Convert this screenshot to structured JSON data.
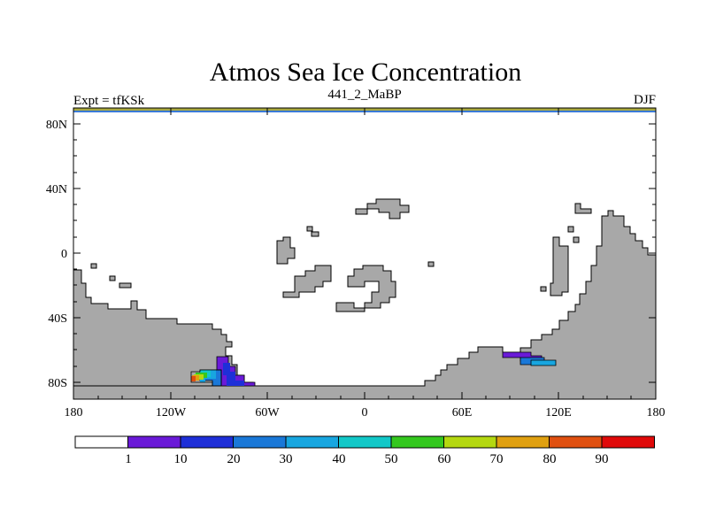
{
  "title": "Atmos Sea Ice Concentration",
  "subtitle": {
    "left": "Expt = tfKSk",
    "center": "441_2_MaBP",
    "right": "DJF"
  },
  "axes": {
    "x_ticks": [
      "180",
      "120W",
      "60W",
      "0",
      "60E",
      "120E",
      "180"
    ],
    "y_ticks": [
      "80N",
      "40N",
      "0",
      "40S",
      "80S"
    ]
  },
  "colorbar": {
    "colors": [
      "#ffffff",
      "#6a1ad8",
      "#1e2fd8",
      "#1a78d8",
      "#18a6e0",
      "#12c8c8",
      "#34c81e",
      "#b4d810",
      "#e0a010",
      "#e05010",
      "#e00a0a"
    ],
    "labels": [
      "1",
      "10",
      "20",
      "30",
      "40",
      "50",
      "60",
      "70",
      "80",
      "90"
    ]
  },
  "colors": {
    "land": "#a8a8a8",
    "top_band": "#a8a840",
    "top_line": "#3a7ad8"
  }
}
